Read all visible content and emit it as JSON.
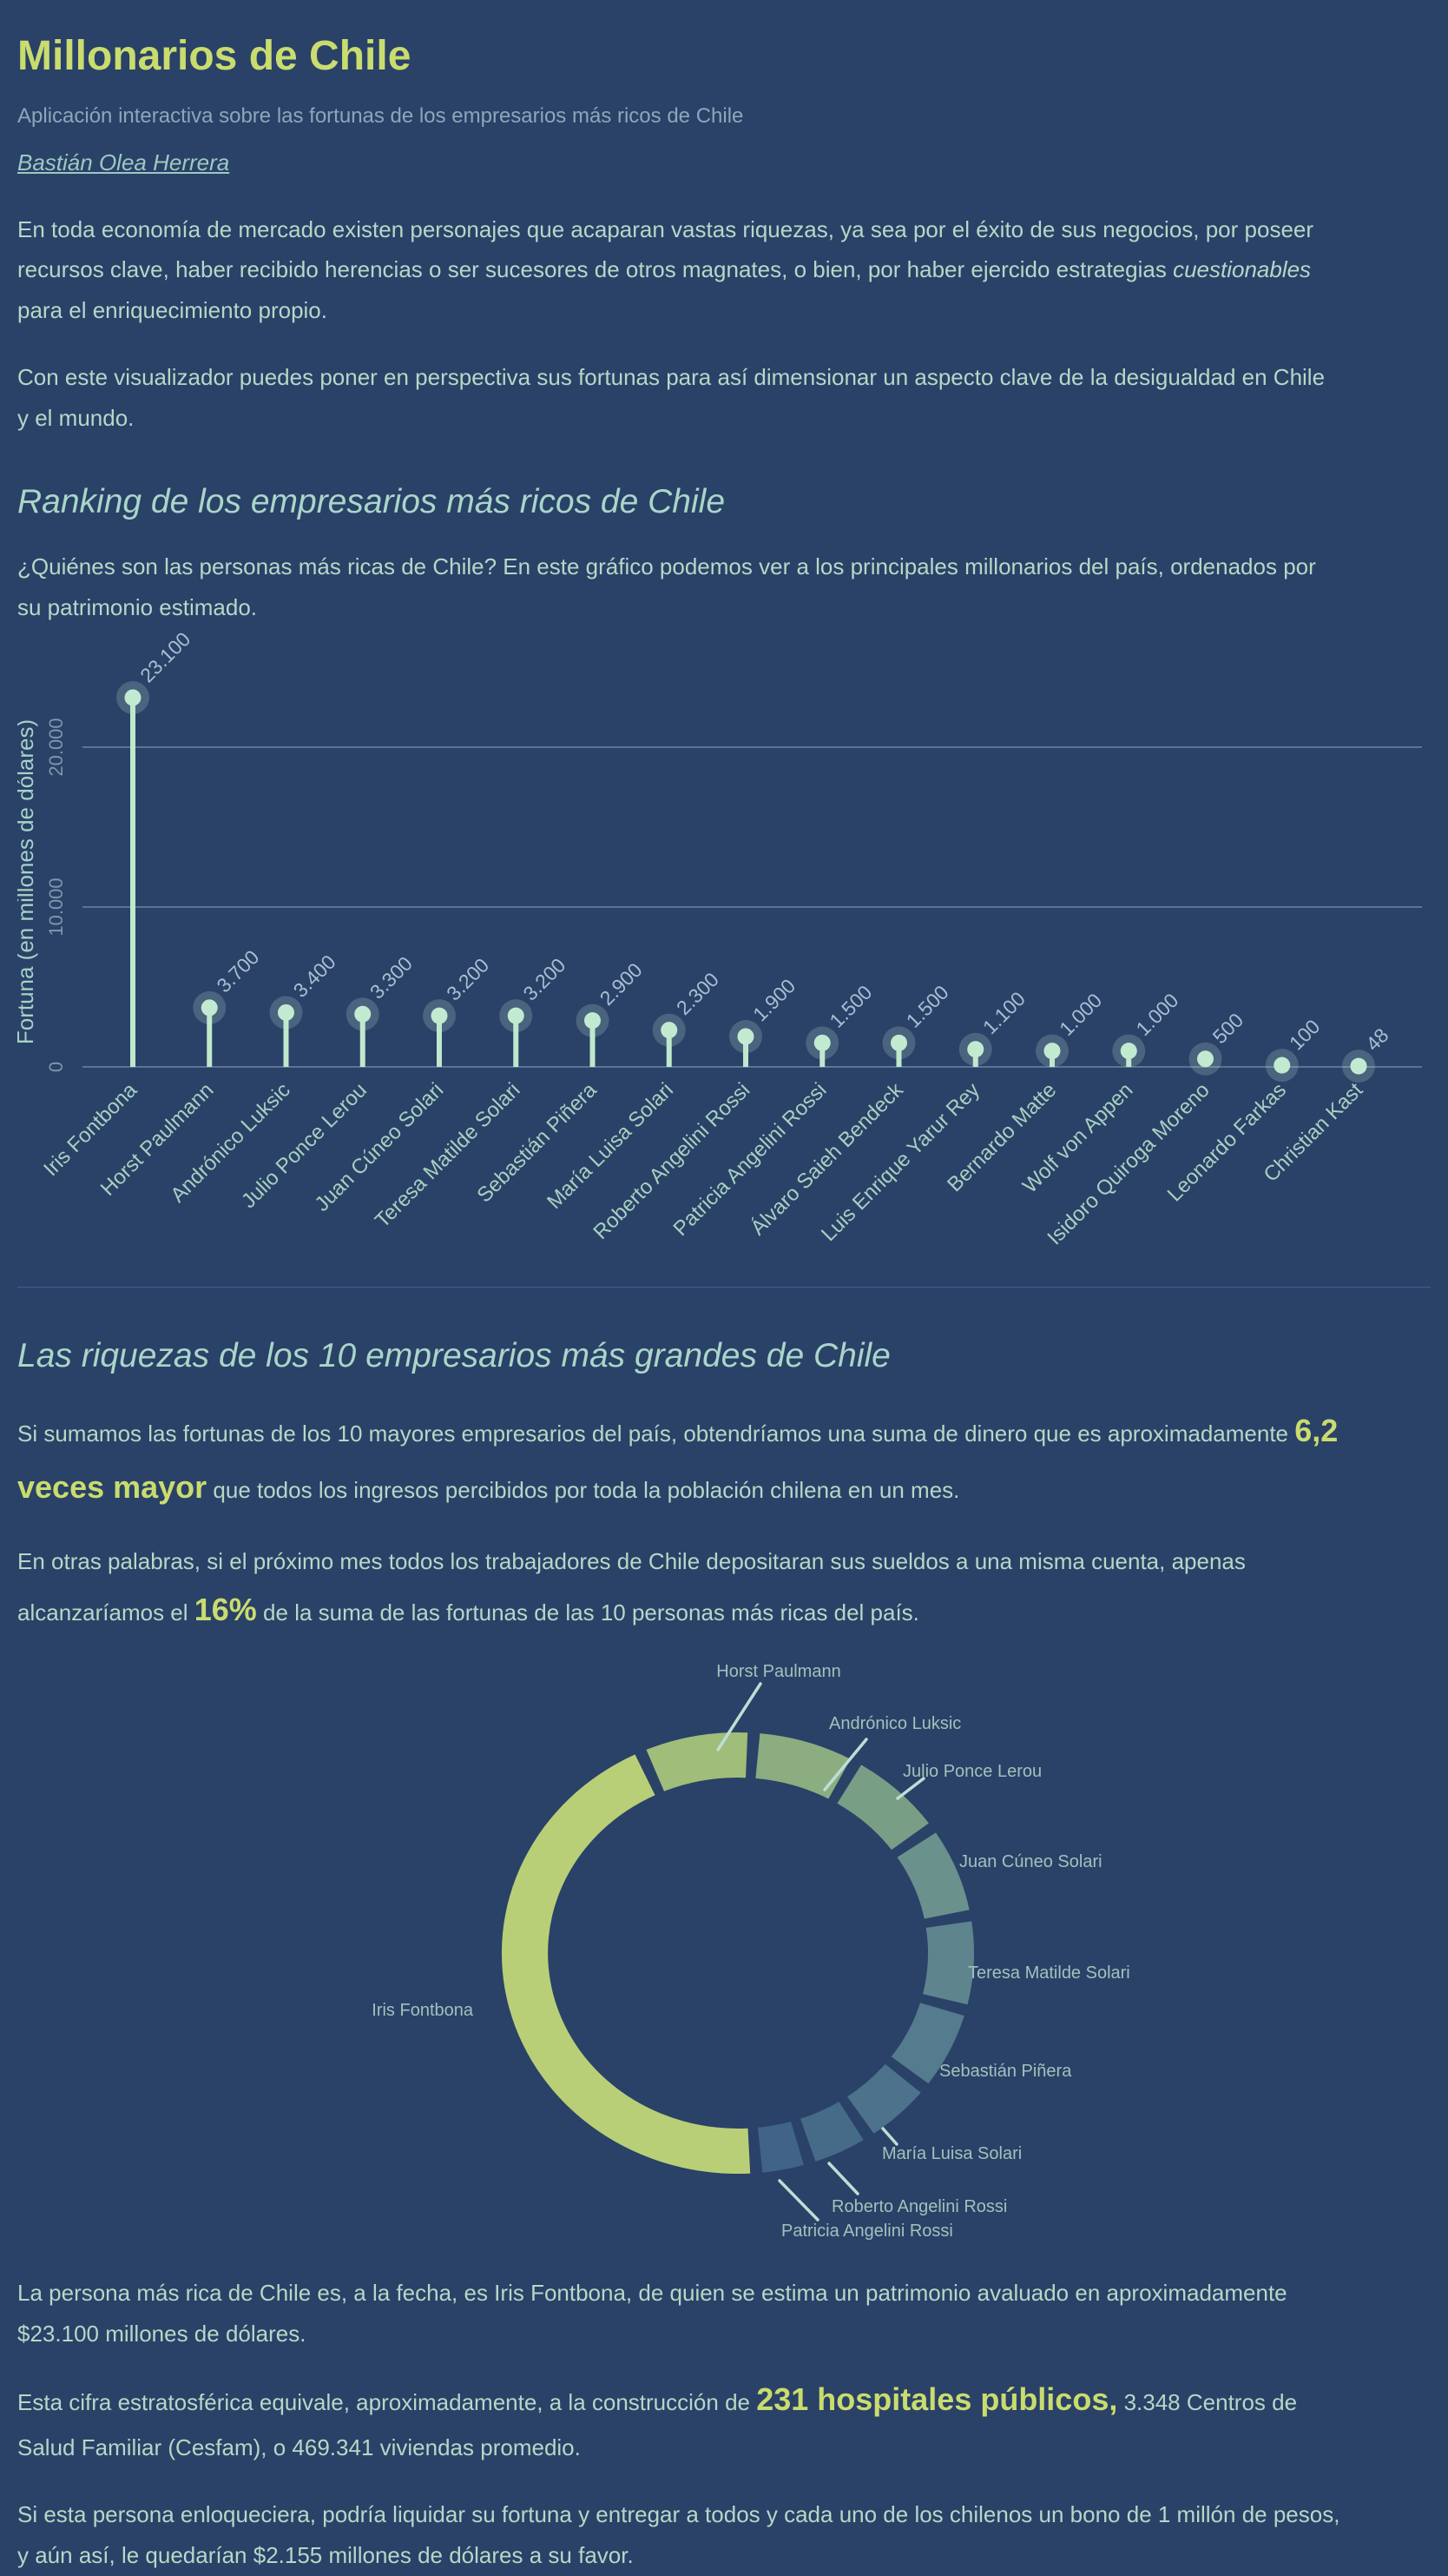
{
  "page": {
    "title": "Millonarios de Chile",
    "subtitle": "Aplicación interactiva sobre las fortunas de los empresarios más ricos de Chile",
    "author": "Bastián Olea Herrera"
  },
  "intro": {
    "p1_a": "En toda economía de mercado existen personajes que acaparan vastas riquezas, ya sea por el éxito de sus negocios, por poseer recursos clave, haber recibido herencias o ser sucesores de otros magnates, o bien, por haber ejercido estrategias ",
    "p1_em": "cuestionables",
    "p1_b": " para el enriquecimiento propio.",
    "p2": "Con este visualizador puedes poner en perspectiva sus fortunas para así dimensionar un aspecto clave de la desigualdad en Chile y el mundo."
  },
  "ranking": {
    "heading": "Ranking de los empresarios más ricos de Chile",
    "description": "¿Quiénes son las personas más ricas de Chile? En este gráfico podemos ver a los principales millonarios del país, ordenados por su patrimonio estimado."
  },
  "top10": {
    "heading": "Las riquezas de los 10 empresarios más grandes de Chile",
    "p1_a": "Si sumamos las fortunas de los 10 mayores empresarios del país, obtendríamos una suma de dinero que es aproximadamente ",
    "p1_highlight": "6,2 veces mayor",
    "p1_b": " que todos los ingresos percibidos por toda la población chilena en un mes.",
    "p2_a": "En otras palabras, si el próximo mes todos los trabajadores de Chile depositaran sus sueldos a una misma cuenta, apenas alcanzaríamos el ",
    "p2_highlight": "16%",
    "p2_b": " de la suma de las fortunas de las 10 personas más ricas del país."
  },
  "conclusion": {
    "p1": "La persona más rica de Chile es, a la fecha, es Iris Fontbona, de quien se estima un patrimonio avaluado en aproximadamente $23.100 millones de dólares.",
    "p2_a": "Esta cifra estratosférica equivale, aproximadamente, a la construcción de ",
    "p2_highlight": "231 hospitales públicos,",
    "p2_b": " 3.348 Centros de Salud Familiar (Cesfam), o 469.341 viviendas promedio.",
    "p3": "Si esta persona enloqueciera, podría liquidar su fortuna y entregar a todos y cada uno de los chilenos un bono de 1 millón de pesos, y aún así, le quedarían $2.155 millones de dólares a su favor."
  },
  "chart_data": [
    {
      "type": "lollipop",
      "title": "Ranking de los empresarios más ricos de Chile",
      "ylabel": "Fortuna (en millones de dólares)",
      "yticks": [
        {
          "value": 0,
          "label": "0"
        },
        {
          "value": 10000,
          "label": "10.000"
        },
        {
          "value": 20000,
          "label": "20.000"
        }
      ],
      "ylim": [
        0,
        23100
      ],
      "grid": true,
      "categories": [
        "Iris Fontbona",
        "Horst Paulmann",
        "Andrónico Luksic",
        "Julio Ponce Lerou",
        "Juan Cúneo Solari",
        "Teresa Matilde Solari",
        "Sebastián Piñera",
        "María Luisa Solari",
        "Roberto Angelini Rossi",
        "Patricia Angelini Rossi",
        "Álvaro Saieh Bendeck",
        "Luis Enrique Yarur Rey",
        "Bernardo Matte",
        "Wolf von Appen",
        "Isidoro Quiroga Moreno",
        "Leonardo Farkas",
        "Christian Kast"
      ],
      "values": [
        23100,
        3700,
        3400,
        3300,
        3200,
        3200,
        2900,
        2300,
        1900,
        1500,
        1500,
        1100,
        1000,
        1000,
        500,
        100,
        48
      ],
      "value_labels": [
        "23.100",
        "3.700",
        "3.400",
        "3.300",
        "3.200",
        "3.200",
        "2.900",
        "2.300",
        "1.900",
        "1.500",
        "1.500",
        "1.100",
        "1.000",
        "1.000",
        "500",
        "100",
        "48"
      ],
      "colors": {
        "stem": "#bfe8cc",
        "dot": "#c2ead0",
        "halo": "rgba(205,235,220,0.20)",
        "grid": "#5b7494",
        "value_label": "#a9bed2",
        "name_label": "#a6d0c0",
        "tick_label": "#7f96ab",
        "axis_label": "#a6d2c6"
      }
    },
    {
      "type": "donut",
      "title": "Las riquezas de los 10 empresarios más grandes de Chile",
      "categories": [
        "Iris Fontbona",
        "Horst Paulmann",
        "Andrónico Luksic",
        "Julio Ponce Lerou",
        "Juan Cúneo Solari",
        "Teresa Matilde Solari",
        "Sebastián Piñera",
        "María Luisa Solari",
        "Roberto Angelini Rossi",
        "Patricia Angelini Rossi"
      ],
      "values": [
        23100,
        3700,
        3400,
        3300,
        3200,
        3200,
        2900,
        2300,
        1900,
        1500
      ],
      "colors": [
        "#b8cf78",
        "#a0bd79",
        "#8bad80",
        "#799e86",
        "#6a918b",
        "#5e858e",
        "#547b8e",
        "#4c728c",
        "#466b89",
        "#416387"
      ],
      "label_color": "#a0c2ba",
      "leader_color": "#bcdfd4",
      "legend_position": "around"
    }
  ]
}
